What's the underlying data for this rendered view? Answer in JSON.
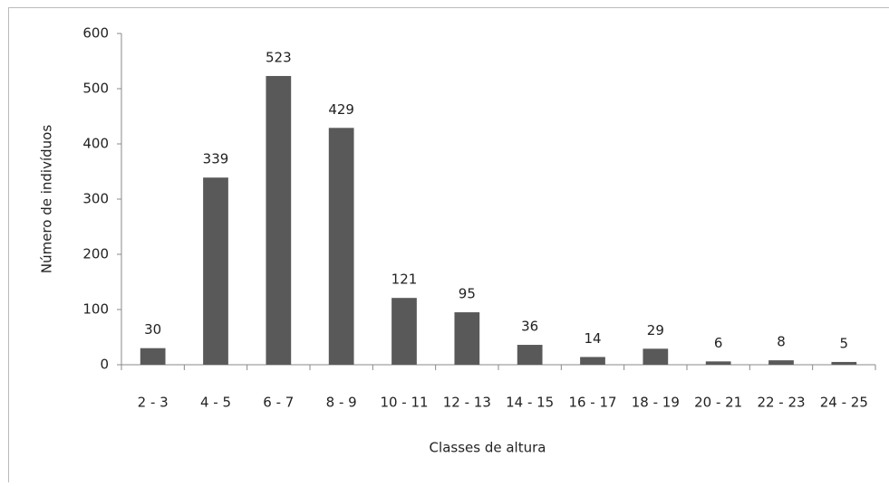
{
  "chart_data": {
    "type": "bar",
    "x_label": "Classes de altura",
    "y_label": "Número de indivíduos",
    "categories": [
      "2 - 3",
      "4 - 5",
      "6 - 7",
      "8 - 9",
      "10 - 11",
      "12 - 13",
      "14 - 15",
      "16 - 17",
      "18 - 19",
      "20 - 21",
      "22 - 23",
      "24 - 25"
    ],
    "values": [
      30,
      339,
      523,
      429,
      121,
      95,
      36,
      14,
      29,
      6,
      8,
      5
    ],
    "color": "#595959",
    "ylim": [
      0,
      600
    ],
    "yticks": [
      0,
      100,
      200,
      300,
      400,
      500,
      600
    ],
    "grid": false
  }
}
